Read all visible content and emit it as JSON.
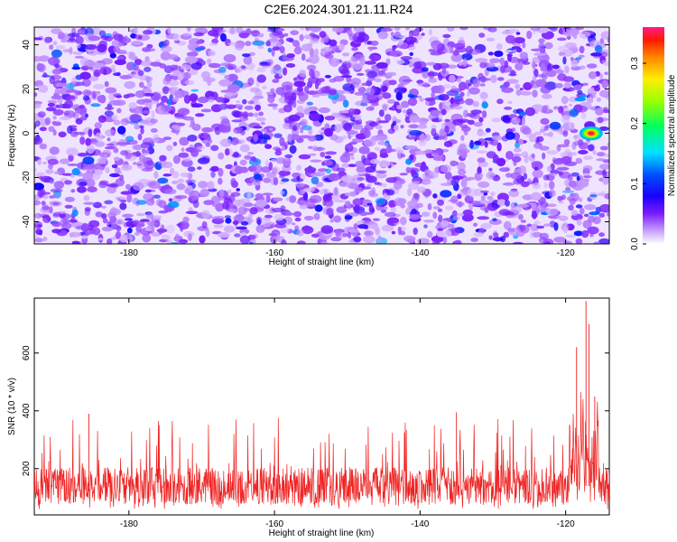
{
  "title": "C2E6.2024.301.21.11.R24",
  "chart_data": [
    {
      "type": "heatmap",
      "title": "C2E6.2024.301.21.11.R24",
      "xlabel": "Height of straight line (km)",
      "ylabel": "Frequency (Hz)",
      "xlim": [
        -193,
        -114
      ],
      "ylim": [
        -50,
        48
      ],
      "x_ticks": [
        -180,
        -160,
        -140,
        -120
      ],
      "y_ticks": [
        -40,
        -20,
        0,
        20,
        40
      ],
      "colorbar": {
        "label": "Normalized spectral amplitude",
        "range": [
          0.0,
          0.36
        ],
        "ticks": [
          0.0,
          0.1,
          0.2,
          0.3
        ],
        "colors": [
          "#ffffff",
          "#9b30ff",
          "#4b00ff",
          "#0000ff",
          "#00e5ff",
          "#00ff00",
          "#ffff00",
          "#ff8000",
          "#ff0000",
          "#ff2090"
        ]
      },
      "background_level": 0.03,
      "features": [
        {
          "x": -116.5,
          "y": 0,
          "value": 0.35,
          "note": "strong echo near -117 km, 0 Hz"
        }
      ]
    },
    {
      "type": "line",
      "xlabel": "Height of straight line (km)",
      "ylabel": "SNR (10 * v/v)",
      "xlim": [
        -193,
        -114
      ],
      "ylim": [
        40,
        790
      ],
      "x_ticks": [
        -180,
        -160,
        -140,
        -120
      ],
      "y_ticks": [
        200,
        400,
        600
      ],
      "color": "#ee2222",
      "noise_floor": {
        "min": 60,
        "typical": 140,
        "max": 320
      },
      "peaks": [
        {
          "x": -185.5,
          "y": 390
        },
        {
          "x": -135.0,
          "y": 395
        },
        {
          "x": -118.5,
          "y": 620
        },
        {
          "x": -117.2,
          "y": 780
        },
        {
          "x": -116.8,
          "y": 700
        },
        {
          "x": -116.0,
          "y": 450
        }
      ]
    }
  ]
}
